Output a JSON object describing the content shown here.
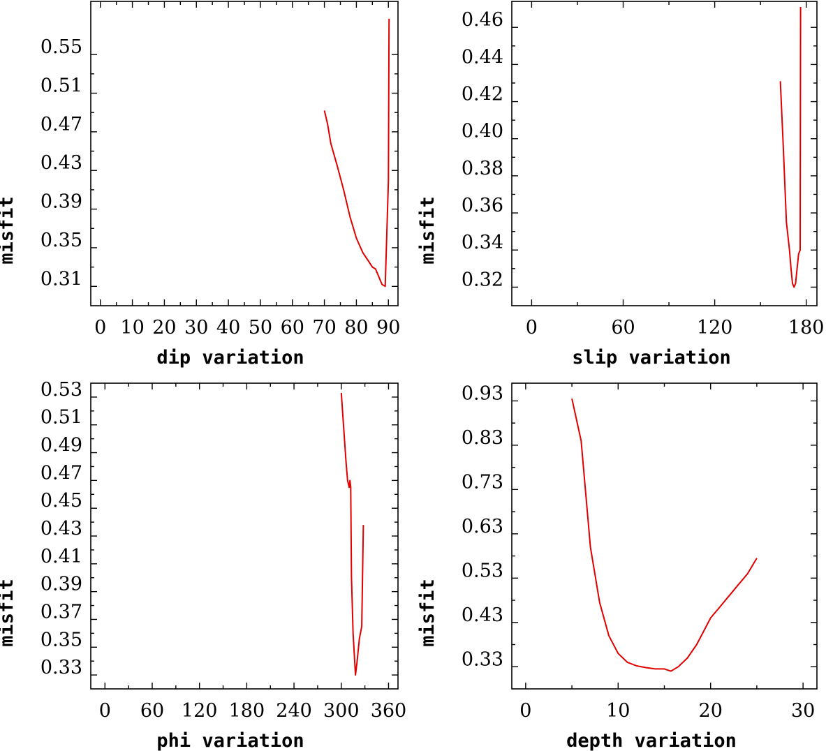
{
  "chart_data": [
    {
      "type": "line",
      "xlabel": "dip    variation",
      "ylabel": "misfit",
      "xlim": [
        -3,
        93
      ],
      "ylim": [
        0.29,
        0.605
      ],
      "xticks": [
        0,
        10,
        20,
        30,
        40,
        50,
        60,
        70,
        80,
        90
      ],
      "xtick_labels": [
        "0",
        "10",
        "20",
        "30",
        "40",
        "50",
        "60",
        "70",
        "80",
        "90"
      ],
      "yticks": [
        0.31,
        0.35,
        0.39,
        0.43,
        0.47,
        0.51,
        0.55
      ],
      "ytick_labels": [
        "0.31",
        "0.35",
        "0.39",
        "0.43",
        "0.47",
        "0.51",
        "0.55"
      ],
      "series": [
        {
          "name": "misfit",
          "color": "#e00000",
          "x": [
            70,
            71,
            72,
            74,
            76,
            78,
            80,
            82,
            84,
            85,
            86,
            87,
            88,
            89,
            90,
            90.2
          ],
          "y": [
            0.492,
            0.478,
            0.458,
            0.435,
            0.41,
            0.382,
            0.36,
            0.345,
            0.335,
            0.33,
            0.328,
            0.32,
            0.312,
            0.31,
            0.42,
            0.587
          ]
        }
      ]
    },
    {
      "type": "line",
      "xlabel": "slip   variation",
      "ylabel": "misfit",
      "xlim": [
        -13,
        187
      ],
      "ylim": [
        0.31,
        0.474
      ],
      "xticks": [
        0,
        60,
        120,
        180
      ],
      "xtick_labels": [
        "0",
        "60",
        "120",
        "180"
      ],
      "yticks": [
        0.32,
        0.34,
        0.36,
        0.38,
        0.4,
        0.42,
        0.44,
        0.46
      ],
      "ytick_labels": [
        "0.32",
        "0.34",
        "0.36",
        "0.38",
        "0.40",
        "0.42",
        "0.44",
        "0.46"
      ],
      "series": [
        {
          "name": "misfit",
          "color": "#e00000",
          "x": [
            163,
            165,
            167,
            169,
            170,
            171,
            172,
            173,
            174,
            175,
            176,
            176.3
          ],
          "y": [
            0.431,
            0.395,
            0.355,
            0.34,
            0.33,
            0.322,
            0.32,
            0.322,
            0.33,
            0.338,
            0.34,
            0.471
          ]
        }
      ]
    },
    {
      "type": "line",
      "xlabel": "phi    variation",
      "ylabel": "misfit",
      "xlim": [
        -18,
        372
      ],
      "ylim": [
        0.32,
        0.54
      ],
      "xticks": [
        0,
        60,
        120,
        180,
        240,
        300,
        360
      ],
      "xtick_labels": [
        "0",
        "60",
        "120",
        "180",
        "240",
        "300",
        "360"
      ],
      "yticks": [
        0.33,
        0.35,
        0.37,
        0.39,
        0.41,
        0.43,
        0.45,
        0.47,
        0.49,
        0.51,
        0.53
      ],
      "ytick_labels": [
        "0.33",
        "0.35",
        "0.37",
        "0.39",
        "0.41",
        "0.43",
        "0.45",
        "0.47",
        "0.49",
        "0.51",
        "0.53"
      ],
      "series": [
        {
          "name": "misfit",
          "color": "#e00000",
          "x": [
            300,
            303,
            306,
            308,
            310,
            311,
            312,
            313,
            315,
            318,
            320,
            323,
            326,
            328
          ],
          "y": [
            0.533,
            0.508,
            0.484,
            0.47,
            0.465,
            0.47,
            0.465,
            0.4,
            0.36,
            0.33,
            0.339,
            0.356,
            0.365,
            0.438
          ]
        }
      ]
    },
    {
      "type": "line",
      "xlabel": "depth  variation",
      "ylabel": "misfit",
      "xlim": [
        -1.5,
        31.5
      ],
      "ylim": [
        0.28,
        0.97
      ],
      "xticks": [
        0,
        10,
        20,
        30
      ],
      "xtick_labels": [
        "0",
        "10",
        "20",
        "30"
      ],
      "yticks": [
        0.33,
        0.43,
        0.53,
        0.63,
        0.73,
        0.83,
        0.93
      ],
      "ytick_labels": [
        "0.33",
        "0.43",
        "0.53",
        "0.63",
        "0.73",
        "0.83",
        "0.93"
      ],
      "series": [
        {
          "name": "misfit",
          "color": "#e00000",
          "x": [
            5,
            6,
            7,
            8,
            9,
            10,
            11,
            12,
            13,
            14,
            15,
            15.7,
            16.5,
            17.5,
            18.5,
            19.5,
            20,
            21,
            22,
            23,
            24,
            25
          ],
          "y": [
            0.935,
            0.84,
            0.6,
            0.475,
            0.4,
            0.36,
            0.34,
            0.332,
            0.328,
            0.325,
            0.325,
            0.32,
            0.33,
            0.35,
            0.38,
            0.42,
            0.44,
            0.465,
            0.49,
            0.515,
            0.54,
            0.575
          ]
        }
      ]
    }
  ]
}
